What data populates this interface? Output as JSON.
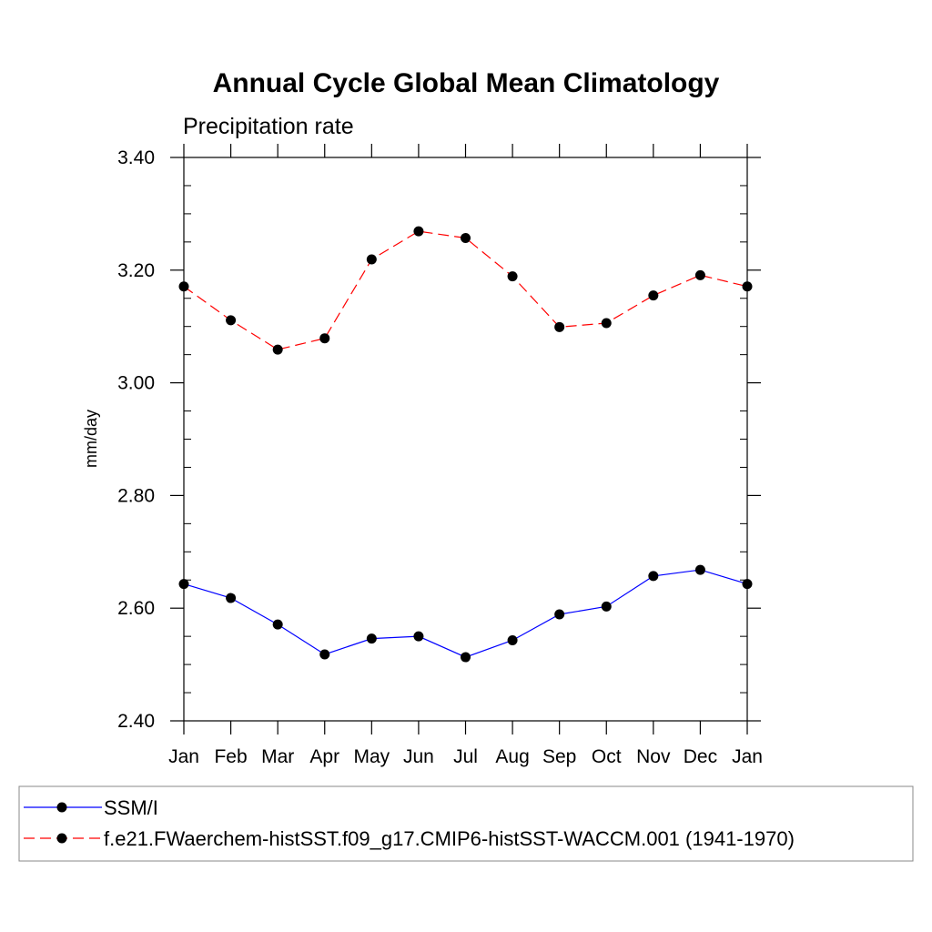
{
  "chart_data": {
    "type": "line",
    "title": "Annual Cycle Global Mean Climatology",
    "subtitle": "Precipitation rate",
    "xlabel": "",
    "ylabel": "mm/day",
    "categories": [
      "Jan",
      "Feb",
      "Mar",
      "Apr",
      "May",
      "Jun",
      "Jul",
      "Aug",
      "Sep",
      "Oct",
      "Nov",
      "Dec",
      "Jan"
    ],
    "ylim": [
      2.4,
      3.4
    ],
    "yticks": [
      "2.40",
      "2.60",
      "2.80",
      "3.00",
      "3.20",
      "3.40"
    ],
    "grid": false,
    "legend_position": "bottom",
    "series": [
      {
        "name": "SSM/I",
        "color": "#0000ff",
        "dash": "solid",
        "marker": "filled-circle",
        "values": [
          2.643,
          2.618,
          2.571,
          2.518,
          2.546,
          2.55,
          2.513,
          2.543,
          2.589,
          2.603,
          2.657,
          2.668,
          2.643
        ]
      },
      {
        "name": "f.e21.FWaerchem-histSST.f09_g17.CMIP6-histSST-WACCM.001 (1941-1970)",
        "color": "#ff0000",
        "dash": "dashed",
        "marker": "filled-circle",
        "values": [
          3.171,
          3.111,
          3.059,
          3.079,
          3.219,
          3.269,
          3.257,
          3.189,
          3.099,
          3.106,
          3.155,
          3.191,
          3.171
        ]
      }
    ]
  }
}
